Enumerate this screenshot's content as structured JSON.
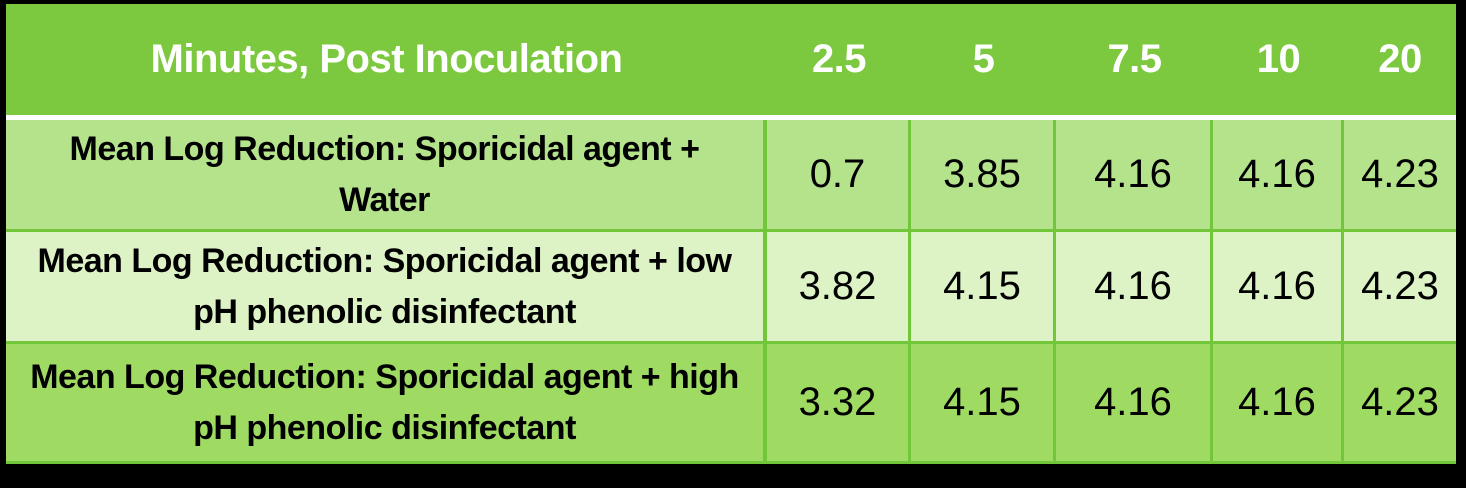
{
  "colors": {
    "frame-black": "#000000",
    "header-green": "#7cc83e",
    "row-water-green": "#b4e38c",
    "row-low-ph-green": "#ddf3c6",
    "row-high-ph-green": "#9fdb63",
    "grid-green": "#72c63a",
    "separator-white": "#ffffff",
    "header-text": "#ffffff",
    "body-text": "#000000"
  },
  "table": {
    "header": {
      "label": "Minutes, Post Inoculation",
      "columns": [
        "2.5",
        "5",
        "7.5",
        "10",
        "20"
      ]
    },
    "rows": [
      {
        "label": "Mean Log Reduction: Sporicidal agent + Water",
        "values": [
          "0.7",
          "3.85",
          "4.16",
          "4.16",
          "4.23"
        ]
      },
      {
        "label": "Mean Log Reduction: Sporicidal agent + low pH phenolic disinfectant",
        "values": [
          "3.82",
          "4.15",
          "4.16",
          "4.16",
          "4.23"
        ]
      },
      {
        "label": "Mean Log Reduction: Sporicidal agent + high pH phenolic disinfectant",
        "values": [
          "3.32",
          "4.15",
          "4.16",
          "4.16",
          "4.23"
        ]
      }
    ]
  },
  "chart_data": {
    "type": "table",
    "title": "Minutes, Post Inoculation",
    "categories": [
      2.5,
      5,
      7.5,
      10,
      20
    ],
    "xlabel": "Minutes, Post Inoculation",
    "ylabel": "Mean Log Reduction",
    "series": [
      {
        "name": "Mean Log Reduction: Sporicidal agent + Water",
        "values": [
          0.7,
          3.85,
          4.16,
          4.16,
          4.23
        ]
      },
      {
        "name": "Mean Log Reduction: Sporicidal agent + low pH phenolic disinfectant",
        "values": [
          3.82,
          4.15,
          4.16,
          4.16,
          4.23
        ]
      },
      {
        "name": "Mean Log Reduction: Sporicidal agent + high pH phenolic disinfectant",
        "values": [
          3.32,
          4.15,
          4.16,
          4.16,
          4.23
        ]
      }
    ]
  }
}
